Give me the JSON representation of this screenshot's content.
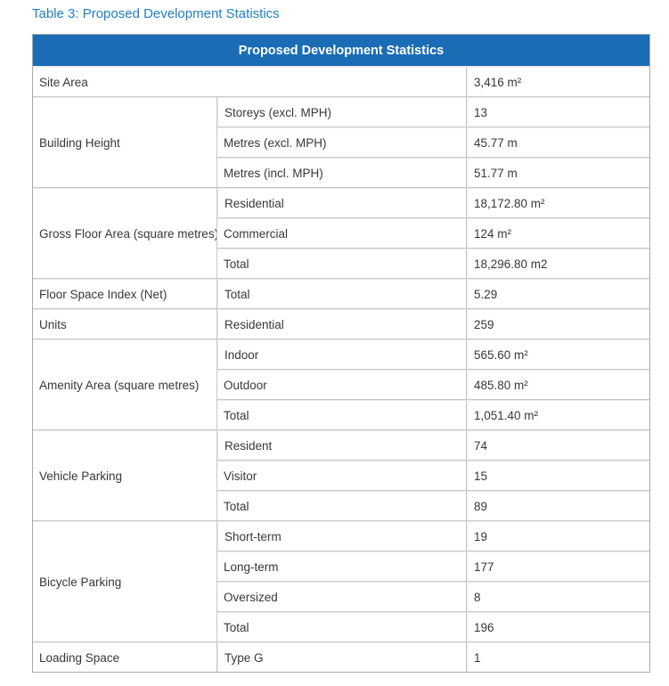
{
  "colors": {
    "caption_color": "#1f7fc4",
    "header_bg": "#1a6cb5",
    "header_fg": "#ffffff",
    "border_outer": "#a9a9a9",
    "border_inner": "#c6c6c6",
    "cell_text": "#383838"
  },
  "caption": {
    "text": "Table 3: Proposed Development Statistics"
  },
  "table": {
    "header": "Proposed Development Statistics",
    "groups": [
      {
        "category": "Site Area",
        "items": [
          {
            "sub": "",
            "value": "3,416 m²"
          }
        ]
      },
      {
        "category": "Building Height",
        "items": [
          {
            "sub": "Storeys (excl. MPH)",
            "value": "13"
          },
          {
            "sub": "Metres (excl. MPH)",
            "value": "45.77 m"
          },
          {
            "sub": "Metres (incl. MPH)",
            "value": "51.77 m"
          }
        ]
      },
      {
        "category": "Gross Floor Area (square metres)",
        "items": [
          {
            "sub": "Residential",
            "value": "18,172.80 m²"
          },
          {
            "sub": "Commercial",
            "value": "124 m²"
          },
          {
            "sub": "Total",
            "value": "18,296.80 m2"
          }
        ]
      },
      {
        "category": "Floor Space Index (Net)",
        "items": [
          {
            "sub": "Total",
            "value": "5.29"
          }
        ]
      },
      {
        "category": "Units",
        "items": [
          {
            "sub": "Residential",
            "value": "259"
          }
        ]
      },
      {
        "category": "Amenity Area (square metres)",
        "items": [
          {
            "sub": "Indoor",
            "value": "565.60 m²"
          },
          {
            "sub": "Outdoor",
            "value": "485.80 m²"
          },
          {
            "sub": "Total",
            "value": "1,051.40 m²"
          }
        ]
      },
      {
        "category": "Vehicle Parking",
        "items": [
          {
            "sub": "Resident",
            "value": "74"
          },
          {
            "sub": "Visitor",
            "value": "15"
          },
          {
            "sub": "Total",
            "value": "89"
          }
        ]
      },
      {
        "category": "Bicycle Parking",
        "items": [
          {
            "sub": "Short-term",
            "value": "19"
          },
          {
            "sub": "Long-term",
            "value": "177"
          },
          {
            "sub": "Oversized",
            "value": "8"
          },
          {
            "sub": "Total",
            "value": "196"
          }
        ]
      },
      {
        "category": "Loading Space",
        "items": [
          {
            "sub": "Type G",
            "value": "1"
          }
        ]
      }
    ]
  }
}
